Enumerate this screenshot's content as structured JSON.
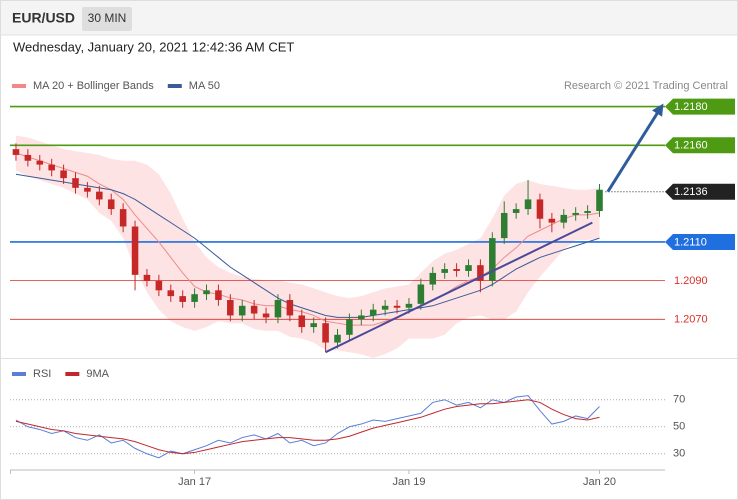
{
  "header": {
    "symbol": "EUR/USD",
    "interval": "30 MIN",
    "datetime": "Wednesday, January 20, 2021 12:42:36 AM CET",
    "credit": "Research © 2021 Trading Central"
  },
  "chart_data": [
    {
      "type": "candlestick",
      "xlim": [
        -0.5,
        54.5
      ],
      "ylim": [
        1.205,
        1.2186
      ],
      "up_color": "#2e7d32",
      "down_color": "#c62828",
      "candles": [
        [
          1.2158,
          1.2161,
          1.2152,
          1.2155
        ],
        [
          1.2155,
          1.2158,
          1.2149,
          1.2152
        ],
        [
          1.2152,
          1.2155,
          1.2147,
          1.215
        ],
        [
          1.215,
          1.2153,
          1.2144,
          1.2147
        ],
        [
          1.2147,
          1.215,
          1.214,
          1.2143
        ],
        [
          1.2143,
          1.2146,
          1.2135,
          1.2138
        ],
        [
          1.2138,
          1.2141,
          1.2133,
          1.2136
        ],
        [
          1.2136,
          1.2139,
          1.2129,
          1.2132
        ],
        [
          1.2132,
          1.2135,
          1.2124,
          1.2127
        ],
        [
          1.2127,
          1.213,
          1.2115,
          1.2118
        ],
        [
          1.2118,
          1.2121,
          1.2085,
          1.2093
        ],
        [
          1.2093,
          1.2096,
          1.2087,
          1.209
        ],
        [
          1.209,
          1.2093,
          1.2082,
          1.2085
        ],
        [
          1.2085,
          1.2088,
          1.2079,
          1.2082
        ],
        [
          1.2082,
          1.2085,
          1.2076,
          1.2079
        ],
        [
          1.2079,
          1.2086,
          1.2076,
          1.2083
        ],
        [
          1.2083,
          1.2088,
          1.208,
          1.2085
        ],
        [
          1.2085,
          1.2088,
          1.2077,
          1.208
        ],
        [
          1.208,
          1.2083,
          1.2069,
          1.2072
        ],
        [
          1.2072,
          1.208,
          1.2069,
          1.2077
        ],
        [
          1.2077,
          1.208,
          1.207,
          1.2073
        ],
        [
          1.2073,
          1.2076,
          1.2068,
          1.2071
        ],
        [
          1.2071,
          1.2083,
          1.2068,
          1.208
        ],
        [
          1.208,
          1.2083,
          1.2069,
          1.2072
        ],
        [
          1.2072,
          1.2075,
          1.2063,
          1.2066
        ],
        [
          1.2066,
          1.2071,
          1.2063,
          1.2068
        ],
        [
          1.2068,
          1.2071,
          1.2053,
          1.2058
        ],
        [
          1.2058,
          1.2065,
          1.2055,
          1.2062
        ],
        [
          1.2062,
          1.2073,
          1.2059,
          1.207
        ],
        [
          1.207,
          1.2075,
          1.2067,
          1.2072
        ],
        [
          1.2072,
          1.2078,
          1.2069,
          1.2075
        ],
        [
          1.2075,
          1.208,
          1.2072,
          1.2077
        ],
        [
          1.2077,
          1.208,
          1.2073,
          1.2076
        ],
        [
          1.2076,
          1.2081,
          1.2073,
          1.2078
        ],
        [
          1.2078,
          1.2091,
          1.2075,
          1.2088
        ],
        [
          1.2088,
          1.2097,
          1.2085,
          1.2094
        ],
        [
          1.2094,
          1.2099,
          1.2091,
          1.2096
        ],
        [
          1.2096,
          1.2099,
          1.2092,
          1.2095
        ],
        [
          1.2095,
          1.2101,
          1.2092,
          1.2098
        ],
        [
          1.2098,
          1.2101,
          1.2084,
          1.209
        ],
        [
          1.209,
          1.2115,
          1.2087,
          1.2112
        ],
        [
          1.2112,
          1.2131,
          1.2109,
          1.2125
        ],
        [
          1.2125,
          1.213,
          1.2122,
          1.2127
        ],
        [
          1.2127,
          1.2142,
          1.2124,
          1.2132
        ],
        [
          1.2132,
          1.2135,
          1.2117,
          1.2122
        ],
        [
          1.2122,
          1.2125,
          1.2115,
          1.212
        ],
        [
          1.212,
          1.2127,
          1.2117,
          1.2124
        ],
        [
          1.2124,
          1.2128,
          1.2121,
          1.2125
        ],
        [
          1.2125,
          1.2129,
          1.2122,
          1.2126
        ],
        [
          1.2126,
          1.214,
          1.2123,
          1.2137
        ]
      ],
      "series": [
        {
          "name": "MA 20 + Bollinger Bands",
          "color": "#f08a8a",
          "band_color": "#fde3e3",
          "values": [
            1.2156,
            1.2154,
            1.2152,
            1.215,
            1.2148,
            1.2146,
            1.2144,
            1.214,
            1.2137,
            1.2132,
            1.2124,
            1.2117,
            1.211,
            1.2102,
            1.2094,
            1.2087,
            1.2084,
            1.2083,
            1.2081,
            1.208,
            1.2078,
            1.2077,
            1.2077,
            1.2075,
            1.2074,
            1.2072,
            1.2069,
            1.2068,
            1.2067,
            1.2067,
            1.2067,
            1.2069,
            1.2071,
            1.2074,
            1.2077,
            1.208,
            1.2083,
            1.2087,
            1.209,
            1.2092,
            1.2096,
            1.2102,
            1.2107,
            1.2113,
            1.2116,
            1.2119,
            1.2122,
            1.2124,
            1.2124,
            1.2125
          ],
          "upper": [
            1.2165,
            1.2164,
            1.2162,
            1.216,
            1.2158,
            1.2157,
            1.2156,
            1.2155,
            1.2153,
            1.2152,
            1.2152,
            1.215,
            1.2145,
            1.2135,
            1.2122,
            1.211,
            1.2102,
            1.2097,
            1.2094,
            1.2092,
            1.2091,
            1.209,
            1.209,
            1.2089,
            1.2088,
            1.2086,
            1.2084,
            1.2082,
            1.2081,
            1.2082,
            1.2084,
            1.2086,
            1.2087,
            1.2088,
            1.2094,
            1.21,
            1.2104,
            1.2106,
            1.2109,
            1.2112,
            1.2122,
            1.2134,
            1.214,
            1.2142,
            1.214,
            1.2139,
            1.2138,
            1.2137,
            1.2137,
            1.2138
          ],
          "lower": [
            1.2147,
            1.2144,
            1.2142,
            1.214,
            1.2138,
            1.2135,
            1.2132,
            1.2125,
            1.2121,
            1.2112,
            1.2096,
            1.2084,
            1.2075,
            1.2069,
            1.2066,
            1.2064,
            1.2066,
            1.2069,
            1.2068,
            1.2068,
            1.2065,
            1.2064,
            1.2064,
            1.2061,
            1.206,
            1.2058,
            1.2054,
            1.2054,
            1.2053,
            1.2052,
            1.205,
            1.2052,
            1.2055,
            1.206,
            1.206,
            1.206,
            1.2062,
            1.2068,
            1.2071,
            1.2072,
            1.207,
            1.207,
            1.2074,
            1.2084,
            1.2092,
            1.2099,
            1.2106,
            1.2111,
            1.2111,
            1.2112
          ]
        },
        {
          "name": "MA 50",
          "color": "#3c5a99",
          "values": [
            1.2145,
            1.2144,
            1.2143,
            1.2142,
            1.2141,
            1.214,
            1.2139,
            1.2138,
            1.2137,
            1.2135,
            1.2132,
            1.2128,
            1.2124,
            1.212,
            1.2116,
            1.2112,
            1.2107,
            1.2102,
            1.2097,
            1.2093,
            1.2089,
            1.2085,
            1.2081,
            1.2078,
            1.2076,
            1.2074,
            1.2072,
            1.2071,
            1.2071,
            1.2071,
            1.2072,
            1.2073,
            1.2074,
            1.2075,
            1.2076,
            1.2077,
            1.2079,
            1.2081,
            1.2083,
            1.2085,
            1.2088,
            1.2092,
            1.2096,
            1.2099,
            1.2102,
            1.2104,
            1.2106,
            1.2108,
            1.211,
            1.2112
          ]
        }
      ],
      "levels": [
        {
          "value": 1.218,
          "label": "1.2180",
          "color": "#4e9a12",
          "line": "solid",
          "tag": "filled"
        },
        {
          "value": 1.216,
          "label": "1.2160",
          "color": "#4e9a12",
          "line": "solid",
          "tag": "filled"
        },
        {
          "value": 1.2136,
          "label": "1.2136",
          "color": "#222222",
          "line": "dotted",
          "tag": "filled"
        },
        {
          "value": 1.211,
          "label": "1.2110",
          "color": "#1f6fe0",
          "line": "solid",
          "tag": "filled"
        },
        {
          "value": 1.209,
          "label": "1.2090",
          "color": "#d9302a",
          "line": "thin",
          "tag": "plain"
        },
        {
          "value": 1.207,
          "label": "1.2070",
          "color": "#d9302a",
          "line": "thin",
          "tag": "plain"
        }
      ],
      "trendlines": [
        {
          "from": [
            26,
            1.2053
          ],
          "to": [
            48.4,
            1.212
          ],
          "color": "#4a4a9a",
          "arrow": false
        },
        {
          "from": [
            49.7,
            1.2136
          ],
          "to": [
            54.1,
            1.2179
          ],
          "color": "#2f5d9a",
          "arrow": true
        }
      ]
    },
    {
      "type": "line",
      "xlim": [
        -0.5,
        54.5
      ],
      "ylim": [
        18,
        92
      ],
      "yticks": [
        30,
        50,
        70
      ],
      "xticks": [
        {
          "value": 15,
          "label": "Jan 17"
        },
        {
          "value": 33,
          "label": "Jan 19"
        },
        {
          "value": 49,
          "label": "Jan 20"
        }
      ],
      "series": [
        {
          "name": "RSI",
          "color": "#5b7fd6",
          "values": [
            55,
            50,
            48,
            45,
            47,
            42,
            40,
            44,
            38,
            40,
            34,
            30,
            27,
            32,
            30,
            33,
            36,
            40,
            38,
            42,
            44,
            41,
            45,
            38,
            40,
            36,
            38,
            45,
            50,
            52,
            55,
            54,
            56,
            58,
            60,
            68,
            70,
            66,
            68,
            64,
            70,
            68,
            72,
            73,
            62,
            52,
            54,
            58,
            56,
            65
          ]
        },
        {
          "name": "9MA",
          "color": "#c0282d",
          "values": [
            54,
            52,
            50,
            48,
            47,
            45,
            44,
            43,
            42,
            41,
            39,
            36,
            33,
            31,
            30,
            31,
            33,
            35,
            37,
            39,
            40,
            41,
            42,
            42,
            41,
            40,
            40,
            41,
            43,
            46,
            49,
            51,
            53,
            55,
            57,
            60,
            63,
            65,
            66,
            67,
            67,
            68,
            69,
            70,
            68,
            63,
            59,
            56,
            55,
            57
          ]
        }
      ]
    }
  ]
}
